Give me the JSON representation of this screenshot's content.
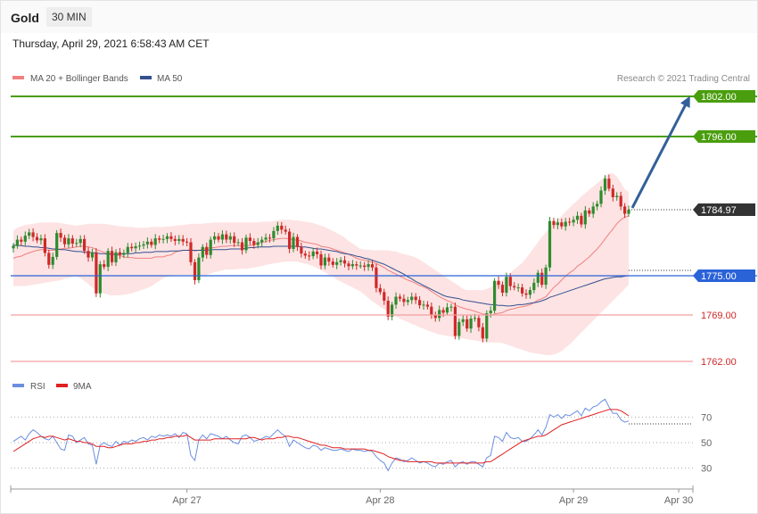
{
  "header": {
    "title": "Gold",
    "timeframe": "30 MIN",
    "datetime": "Thursday, April 29, 2021 6:58:43 AM CET"
  },
  "legend": {
    "ma20": "MA 20 + Bollinger Bands",
    "ma50": "MA 50",
    "copyright": "Research © 2021 Trading Central",
    "rsi": "RSI",
    "rsi_ma": "9MA"
  },
  "colors": {
    "ma20": "#f08080",
    "ma50": "#33508f",
    "band_fill": "#fde3e3",
    "bull": "#2e8b2e",
    "bear": "#d02828",
    "resistance": "#4a9e0e",
    "pivot": "#2a62d8",
    "support": "#f4a0a0",
    "support_text": "#d02828",
    "last_price": "#333333",
    "arrow": "#33609a",
    "rsi": "#6a8ee0",
    "rsi_ma": "#e02020"
  },
  "levels": {
    "r2": "1802.00",
    "r1": "1796.00",
    "last": "1784.97",
    "pivot": "1775.00",
    "s1": "1769.00",
    "s2": "1762.00"
  },
  "chart_data": {
    "type": "candlestick",
    "instrument": "Gold",
    "timeframe": "30 MIN",
    "x_labels": [
      "Apr 27",
      "Apr 28",
      "Apr 29",
      "Apr 30"
    ],
    "ylim": [
      1760.3,
      1806.3
    ],
    "last_price": 1784.97,
    "target": 1802.0,
    "close": [
      1779.5,
      1780.4,
      1780.1,
      1781.0,
      1781.5,
      1780.8,
      1780.3,
      1780.6,
      1778.4,
      1776.6,
      1777.8,
      1781.4,
      1780.7,
      1779.7,
      1780.6,
      1779.8,
      1779.9,
      1780.5,
      1778.7,
      1777.7,
      1778.5,
      1772.3,
      1776.7,
      1776.3,
      1778.7,
      1777.0,
      1778.5,
      1778.1,
      1778.4,
      1779.3,
      1779.1,
      1779.4,
      1779.5,
      1779.7,
      1780.1,
      1779.6,
      1780.6,
      1780.4,
      1780.5,
      1780.9,
      1780.5,
      1780.2,
      1780.5,
      1780.1,
      1780.0,
      1777.0,
      1774.3,
      1777.7,
      1779.3,
      1778.1,
      1780.4,
      1780.9,
      1780.4,
      1781.2,
      1780.4,
      1780.9,
      1779.9,
      1780.0,
      1778.8,
      1780.7,
      1780.2,
      1779.6,
      1780.0,
      1780.4,
      1780.7,
      1780.6,
      1781.7,
      1782.5,
      1781.9,
      1781.6,
      1779.0,
      1780.8,
      1779.3,
      1778.3,
      1778.0,
      1777.9,
      1778.6,
      1778.2,
      1776.5,
      1777.7,
      1777.1,
      1776.6,
      1777.0,
      1777.3,
      1776.8,
      1776.4,
      1776.7,
      1776.5,
      1776.5,
      1776.3,
      1776.7,
      1776.2,
      1773.1,
      1772.5,
      1771.2,
      1768.8,
      1770.6,
      1771.8,
      1771.5,
      1771.0,
      1771.3,
      1771.8,
      1771.3,
      1770.5,
      1770.6,
      1770.3,
      1769.1,
      1768.6,
      1769.8,
      1769.4,
      1770.2,
      1770.3,
      1765.9,
      1768.0,
      1768.4,
      1767.0,
      1768.5,
      1768.6,
      1767.2,
      1765.5,
      1769.3,
      1769.7,
      1774.2,
      1773.6,
      1772.4,
      1774.8,
      1773.4,
      1773.2,
      1773.2,
      1772.3,
      1772.1,
      1772.8,
      1773.9,
      1775.4,
      1773.6,
      1776.2,
      1783.2,
      1782.6,
      1783.0,
      1782.4,
      1783.1,
      1783.0,
      1783.4,
      1784.0,
      1782.7,
      1784.8,
      1784.3,
      1785.4,
      1785.8,
      1787.8,
      1789.6,
      1788.1,
      1786.8,
      1787.0,
      1785.4,
      1784.3,
      1784.9
    ],
    "ma20": [
      1777.6,
      1777.8,
      1777.9,
      1778.2,
      1778.4,
      1778.6,
      1778.8,
      1778.9,
      1778.9,
      1778.8,
      1778.8,
      1778.9,
      1779.0,
      1779.1,
      1779.1,
      1779.2,
      1779.3,
      1779.4,
      1779.4,
      1779.3,
      1779.2,
      1778.9,
      1778.7,
      1778.5,
      1778.4,
      1778.2,
      1778.1,
      1778.0,
      1777.8,
      1777.7,
      1777.7,
      1777.6,
      1777.6,
      1777.6,
      1777.6,
      1777.6,
      1777.8,
      1777.8,
      1777.8,
      1778.0,
      1778.1,
      1778.5,
      1778.7,
      1778.8,
      1778.8,
      1778.9,
      1778.7,
      1778.8,
      1778.9,
      1779.1,
      1779.2,
      1779.2,
      1779.3,
      1779.4,
      1779.4,
      1779.5,
      1779.5,
      1779.5,
      1779.5,
      1779.5,
      1779.5,
      1779.6,
      1779.9,
      1780.0,
      1780.1,
      1780.3,
      1780.4,
      1780.5,
      1780.6,
      1780.6,
      1780.5,
      1780.4,
      1780.3,
      1780.2,
      1780.0,
      1779.9,
      1779.8,
      1779.7,
      1779.4,
      1779.3,
      1779.2,
      1779.0,
      1778.8,
      1778.6,
      1778.4,
      1778.2,
      1777.9,
      1777.6,
      1777.4,
      1777.3,
      1777.2,
      1777.0,
      1776.8,
      1776.5,
      1776.2,
      1775.8,
      1775.5,
      1775.2,
      1774.9,
      1774.6,
      1774.3,
      1774.1,
      1773.8,
      1773.5,
      1773.3,
      1773.0,
      1772.6,
      1772.2,
      1771.8,
      1771.5,
      1771.2,
      1771.0,
      1770.6,
      1770.3,
      1770.1,
      1769.9,
      1769.8,
      1769.6,
      1769.4,
      1769.2,
      1769.1,
      1769.0,
      1769.2,
      1769.3,
      1769.4,
      1769.7,
      1769.9,
      1770.0,
      1770.2,
      1770.3,
      1770.4,
      1770.6,
      1770.9,
      1771.3,
      1771.5,
      1771.8,
      1772.5,
      1773.2,
      1773.7,
      1774.3,
      1774.9,
      1775.4,
      1775.8,
      1776.4,
      1776.8,
      1777.3,
      1777.8,
      1778.4,
      1779.0,
      1779.7,
      1780.5,
      1781.3,
      1782.0,
      1782.8,
      1783.4,
      1783.8,
      1784.0
    ],
    "ma50": [
      1779.6,
      1779.5,
      1779.5,
      1779.4,
      1779.4,
      1779.3,
      1779.3,
      1779.2,
      1779.2,
      1779.1,
      1779.0,
      1779.0,
      1778.9,
      1778.9,
      1778.8,
      1778.7,
      1778.6,
      1778.6,
      1778.5,
      1778.5,
      1778.4,
      1778.4,
      1778.3,
      1778.3,
      1778.2,
      1778.2,
      1778.2,
      1778.2,
      1778.3,
      1778.3,
      1778.3,
      1778.4,
      1778.4,
      1778.5,
      1778.5,
      1778.5,
      1778.6,
      1778.6,
      1778.6,
      1778.6,
      1778.7,
      1778.7,
      1778.7,
      1778.8,
      1778.8,
      1778.8,
      1778.8,
      1778.8,
      1778.8,
      1778.8,
      1778.9,
      1778.9,
      1778.9,
      1778.9,
      1778.9,
      1779.0,
      1779.0,
      1779.0,
      1779.0,
      1779.1,
      1779.2,
      1779.2,
      1779.3,
      1779.3,
      1779.3,
      1779.3,
      1779.4,
      1779.4,
      1779.4,
      1779.4,
      1779.4,
      1779.4,
      1779.4,
      1779.3,
      1779.3,
      1779.2,
      1779.1,
      1779.0,
      1779.0,
      1778.9,
      1778.8,
      1778.7,
      1778.6,
      1778.4,
      1778.3,
      1778.2,
      1778.1,
      1777.9,
      1777.8,
      1777.6,
      1777.5,
      1777.3,
      1777.1,
      1776.9,
      1776.7,
      1776.4,
      1776.1,
      1775.8,
      1775.5,
      1775.2,
      1774.8,
      1774.5,
      1774.1,
      1773.8,
      1773.5,
      1773.2,
      1772.9,
      1772.6,
      1772.3,
      1772.0,
      1771.8,
      1771.7,
      1771.6,
      1771.5,
      1771.3,
      1771.2,
      1771.1,
      1771.0,
      1770.9,
      1770.8,
      1770.7,
      1770.6,
      1770.6,
      1770.5,
      1770.5,
      1770.4,
      1770.4,
      1770.5,
      1770.6,
      1770.6,
      1770.7,
      1770.8,
      1770.9,
      1771.0,
      1771.2,
      1771.4,
      1771.7,
      1771.9,
      1772.1,
      1772.3,
      1772.5,
      1772.7,
      1772.9,
      1773.1,
      1773.3,
      1773.5,
      1773.7,
      1773.9,
      1774.1,
      1774.3,
      1774.5,
      1774.6,
      1774.7,
      1774.8,
      1774.8,
      1774.9,
      1775.0
    ],
    "bb_upper": [
      1781.8,
      1782.2,
      1782.4,
      1782.6,
      1782.7,
      1782.8,
      1782.9,
      1783.0,
      1783.0,
      1783.0,
      1783.0,
      1783.0,
      1782.9,
      1782.8,
      1782.7,
      1782.6,
      1782.5,
      1782.6,
      1782.7,
      1782.8,
      1782.8,
      1782.8,
      1782.8,
      1782.8,
      1782.7,
      1782.6,
      1782.5,
      1782.4,
      1782.4,
      1782.3,
      1782.3,
      1782.2,
      1782.2,
      1782.2,
      1782.2,
      1782.3,
      1782.3,
      1782.3,
      1782.3,
      1782.4,
      1782.4,
      1782.5,
      1782.6,
      1782.6,
      1782.7,
      1782.8,
      1782.8,
      1782.8,
      1782.8,
      1782.9,
      1782.9,
      1783.0,
      1783.0,
      1783.0,
      1783.0,
      1783.0,
      1783.0,
      1783.0,
      1783.0,
      1783.0,
      1783.0,
      1783.0,
      1783.0,
      1783.1,
      1783.1,
      1783.1,
      1783.2,
      1783.3,
      1783.4,
      1783.4,
      1783.4,
      1783.3,
      1783.3,
      1783.2,
      1783.1,
      1783.0,
      1782.9,
      1782.7,
      1782.5,
      1782.3,
      1782.0,
      1781.7,
      1781.4,
      1781.1,
      1780.7,
      1780.2,
      1779.8,
      1779.4,
      1779.0,
      1778.9,
      1778.9,
      1778.8,
      1778.8,
      1778.8,
      1778.8,
      1778.8,
      1778.7,
      1778.6,
      1778.4,
      1778.2,
      1778.1,
      1777.9,
      1777.7,
      1777.4,
      1777.0,
      1776.6,
      1776.2,
      1775.8,
      1775.4,
      1775.0,
      1774.6,
      1774.2,
      1773.8,
      1773.4,
      1773.0,
      1772.8,
      1772.8,
      1772.8,
      1772.8,
      1772.8,
      1773.0,
      1773.2,
      1773.6,
      1774.0,
      1774.4,
      1774.9,
      1775.4,
      1775.9,
      1776.4,
      1776.9,
      1777.6,
      1778.4,
      1779.2,
      1780.0,
      1780.8,
      1781.5,
      1782.2,
      1782.8,
      1783.4,
      1784.0,
      1784.6,
      1785.2,
      1785.8,
      1786.3,
      1786.9,
      1787.4,
      1787.9,
      1788.4,
      1788.9,
      1789.4,
      1789.9,
      1790.4,
      1790.4,
      1789.9,
      1789.0,
      1788.0,
      1787.6
    ],
    "bb_lower": [
      1773.4,
      1773.4,
      1773.4,
      1773.4,
      1773.5,
      1773.6,
      1773.7,
      1773.8,
      1773.9,
      1774.0,
      1774.1,
      1774.2,
      1774.3,
      1774.5,
      1774.6,
      1774.8,
      1774.9,
      1774.6,
      1774.2,
      1773.7,
      1773.2,
      1772.8,
      1772.6,
      1772.3,
      1772.1,
      1772.0,
      1772.0,
      1772.0,
      1772.1,
      1772.2,
      1772.3,
      1772.5,
      1772.7,
      1772.9,
      1773.1,
      1773.4,
      1773.8,
      1774.2,
      1774.6,
      1774.8,
      1775.0,
      1775.1,
      1775.1,
      1775.1,
      1775.1,
      1775.1,
      1775.0,
      1774.9,
      1775.0,
      1775.1,
      1775.3,
      1775.5,
      1775.6,
      1775.8,
      1775.9,
      1775.9,
      1775.9,
      1776.0,
      1776.0,
      1776.0,
      1776.1,
      1776.2,
      1776.3,
      1776.4,
      1776.6,
      1776.7,
      1776.8,
      1776.9,
      1777.0,
      1777.1,
      1777.1,
      1777.1,
      1777.1,
      1776.9,
      1776.8,
      1776.6,
      1776.4,
      1776.1,
      1775.8,
      1775.5,
      1775.1,
      1774.8,
      1774.4,
      1774.1,
      1773.8,
      1773.5,
      1773.2,
      1772.9,
      1772.6,
      1772.1,
      1771.6,
      1771.1,
      1770.7,
      1770.3,
      1769.9,
      1769.5,
      1769.1,
      1768.8,
      1768.5,
      1768.2,
      1768.0,
      1767.7,
      1767.5,
      1767.2,
      1767.0,
      1766.7,
      1766.5,
      1766.3,
      1766.1,
      1766.0,
      1765.9,
      1765.8,
      1765.7,
      1765.6,
      1765.5,
      1765.4,
      1765.3,
      1765.2,
      1765.1,
      1765.0,
      1764.9,
      1764.9,
      1764.9,
      1764.9,
      1764.8,
      1764.6,
      1764.4,
      1764.2,
      1764.0,
      1763.8,
      1763.6,
      1763.4,
      1763.3,
      1763.2,
      1763.1,
      1763.0,
      1763.0,
      1763.1,
      1763.3,
      1763.6,
      1764.1,
      1764.6,
      1765.2,
      1765.8,
      1766.4,
      1767.0,
      1767.6,
      1768.2,
      1768.8,
      1769.4,
      1770.0,
      1770.6,
      1771.2,
      1771.8,
      1772.4,
      1773.0,
      1773.6,
      1774.2,
      1774.8
    ],
    "rsi_ylim": [
      15,
      85
    ],
    "rsi_ticks": [
      70,
      50,
      30
    ],
    "rsi": [
      51,
      53,
      55,
      52,
      57,
      60,
      58,
      55,
      53,
      52,
      55,
      50,
      45,
      44,
      56,
      55,
      50,
      52,
      54,
      49,
      48,
      33,
      48,
      50,
      48,
      47,
      51,
      48,
      51,
      50,
      52,
      51,
      53,
      54,
      52,
      55,
      54,
      56,
      55,
      56,
      55,
      57,
      54,
      58,
      57,
      40,
      36,
      52,
      56,
      53,
      57,
      56,
      55,
      53,
      55,
      52,
      50,
      49,
      55,
      56,
      54,
      51,
      52,
      53,
      55,
      54,
      57,
      60,
      57,
      55,
      47,
      52,
      50,
      48,
      46,
      45,
      48,
      47,
      44,
      46,
      45,
      44,
      44,
      45,
      44,
      43,
      45,
      44,
      44,
      43,
      44,
      43,
      39,
      36,
      34,
      28,
      34,
      38,
      37,
      35,
      36,
      38,
      36,
      34,
      35,
      34,
      32,
      31,
      34,
      33,
      35,
      36,
      31,
      34,
      35,
      33,
      35,
      35,
      33,
      31,
      38,
      40,
      55,
      54,
      51,
      58,
      54,
      53,
      54,
      51,
      51,
      53,
      56,
      60,
      56,
      62,
      72,
      70,
      72,
      69,
      72,
      71,
      73,
      75,
      71,
      77,
      75,
      78,
      79,
      82,
      84,
      78,
      73,
      73,
      68,
      66,
      67
    ],
    "rsi_ma": [
      43,
      45,
      47,
      49,
      51,
      53,
      54,
      55,
      54,
      55,
      55,
      54,
      53,
      52,
      53,
      52,
      51,
      51,
      50,
      50,
      49,
      47,
      47,
      47,
      46,
      46,
      47,
      48,
      49,
      49,
      49,
      50,
      50,
      51,
      51,
      52,
      52,
      53,
      53,
      54,
      54,
      55,
      55,
      55,
      56,
      54,
      52,
      52,
      52,
      52,
      52,
      53,
      53,
      53,
      53,
      53,
      53,
      53,
      53,
      53,
      54,
      54,
      53,
      52,
      53,
      53,
      53,
      54,
      54,
      55,
      55,
      54,
      54,
      53,
      52,
      51,
      50,
      49,
      48,
      48,
      47,
      46,
      46,
      46,
      45,
      45,
      45,
      45,
      45,
      45,
      44,
      44,
      43,
      42,
      41,
      39,
      38,
      37,
      36,
      36,
      35,
      35,
      35,
      35,
      35,
      35,
      35,
      34,
      34,
      34,
      34,
      34,
      34,
      34,
      34,
      34,
      34,
      34,
      34,
      34,
      35,
      35,
      37,
      39,
      41,
      43,
      45,
      47,
      49,
      51,
      52,
      53,
      54,
      55,
      55,
      56,
      58,
      60,
      62,
      64,
      65,
      66,
      67,
      68,
      69,
      70,
      71,
      72,
      73,
      74,
      75,
      76,
      76,
      76,
      75,
      73,
      71
    ]
  }
}
